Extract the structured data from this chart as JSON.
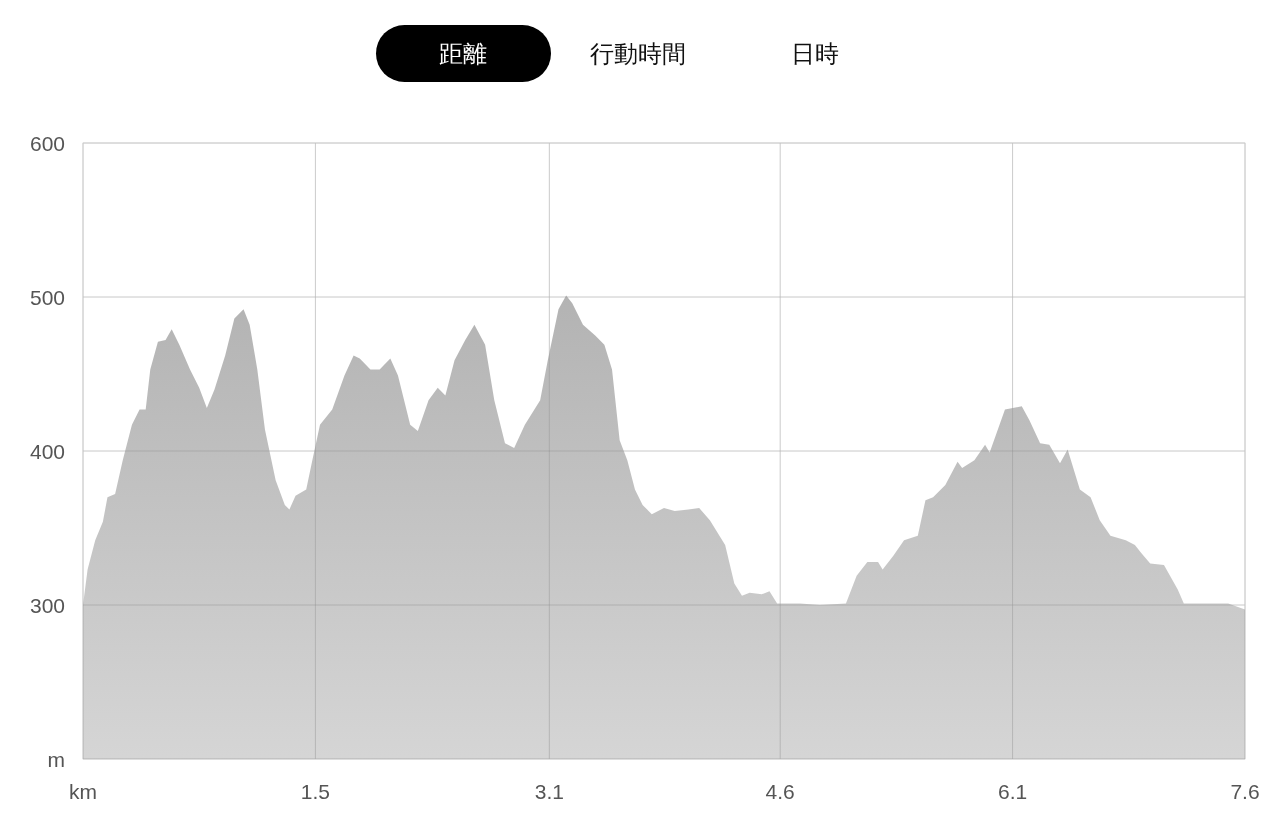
{
  "chart_data": {
    "type": "area",
    "annotations": [
      "距離",
      "行動時間",
      "日時"
    ],
    "x": [
      0,
      0.03,
      0.08,
      0.13,
      0.16,
      0.21,
      0.26,
      0.32,
      0.37,
      0.41,
      0.44,
      0.49,
      0.54,
      0.58,
      0.63,
      0.7,
      0.76,
      0.81,
      0.86,
      0.93,
      0.99,
      1.05,
      1.09,
      1.14,
      1.19,
      1.26,
      1.32,
      1.35,
      1.39,
      1.46,
      1.5,
      1.55,
      1.63,
      1.71,
      1.77,
      1.81,
      1.88,
      1.94,
      2.01,
      2.06,
      2.14,
      2.19,
      2.26,
      2.32,
      2.37,
      2.43,
      2.5,
      2.56,
      2.63,
      2.69,
      2.76,
      2.82,
      2.89,
      2.99,
      3.04,
      3.11,
      3.16,
      3.2,
      3.27,
      3.35,
      3.41,
      3.46,
      3.51,
      3.56,
      3.61,
      3.66,
      3.72,
      3.8,
      3.87,
      3.96,
      4.03,
      4.1,
      4.2,
      4.26,
      4.31,
      4.36,
      4.44,
      4.49,
      4.54,
      4.69,
      4.82,
      4.99,
      5.06,
      5.13,
      5.2,
      5.23,
      5.3,
      5.37,
      5.46,
      5.51,
      5.56,
      5.64,
      5.72,
      5.75,
      5.83,
      5.9,
      5.93,
      6.03,
      6.14,
      6.19,
      6.26,
      6.32,
      6.39,
      6.44,
      6.52,
      6.59,
      6.65,
      6.72,
      6.82,
      6.88,
      6.92,
      6.98,
      7.07,
      7.16,
      7.2,
      7.49,
      7.6
    ],
    "series": [
      {
        "color": "#b3b3b3",
        "values": [
          300,
          323,
          342,
          354,
          370,
          372,
          394,
          417,
          427,
          427,
          453,
          471,
          472,
          479,
          469,
          453,
          441,
          428,
          440,
          462,
          486,
          492,
          482,
          453,
          414,
          381,
          365,
          362,
          371,
          375,
          394,
          417,
          427,
          449,
          462,
          460,
          453,
          453,
          460,
          449,
          417,
          413,
          433,
          441,
          436,
          459,
          472,
          482,
          469,
          433,
          405,
          402,
          417,
          433,
          459,
          492,
          501,
          496,
          482,
          475,
          469,
          453,
          407,
          394,
          375,
          365,
          359,
          363,
          361,
          362,
          363,
          355,
          339,
          314,
          306,
          308,
          307,
          309,
          301,
          301,
          300,
          301,
          319,
          328,
          328,
          323,
          332,
          342,
          345,
          368,
          370,
          378,
          393,
          389,
          394,
          404,
          399,
          427,
          429,
          420,
          405,
          404,
          392,
          401,
          375,
          370,
          355,
          345,
          342,
          339,
          334,
          327,
          326,
          310,
          301,
          301,
          297
        ]
      }
    ],
    "xlim": [
      0,
      7.6
    ],
    "xticks": [
      {
        "value": 0,
        "label": "km"
      },
      {
        "value": 1.52,
        "label": "1.5"
      },
      {
        "value": 3.05,
        "label": "3.1"
      },
      {
        "value": 4.56,
        "label": "4.6"
      },
      {
        "value": 6.08,
        "label": "6.1"
      },
      7.6
    ],
    "ylim": [
      200,
      600
    ],
    "yticks": [
      {
        "value": 200,
        "label": "m"
      },
      300,
      400,
      500,
      600
    ],
    "grid": true
  }
}
